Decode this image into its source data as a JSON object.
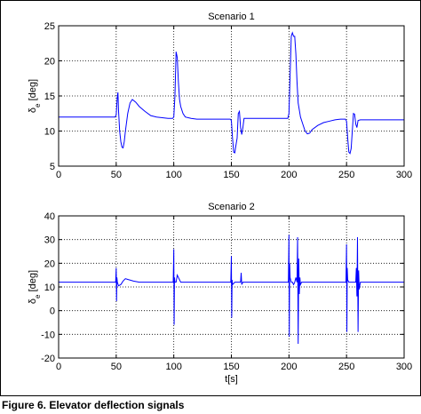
{
  "caption": "Figure 6. Elevator deflection signals",
  "colors": {
    "line": "#0000ff",
    "axis": "#000000",
    "grid": "#000000"
  },
  "chart_data": [
    {
      "type": "line",
      "title": "Scenario 1",
      "xlabel": "",
      "ylabel": "δe [deg]",
      "ylabel_main": "δ",
      "ylabel_sub": "e",
      "ylabel_unit": "[deg]",
      "xlim": [
        0,
        300
      ],
      "ylim": [
        5,
        25
      ],
      "xticks": [
        0,
        50,
        100,
        150,
        200,
        250,
        300
      ],
      "yticks": [
        5,
        10,
        15,
        20,
        25
      ],
      "grid": true,
      "series": [
        {
          "x": [
            0,
            49,
            50,
            51,
            51.5,
            52,
            53,
            54,
            55,
            56,
            57,
            58,
            60,
            62,
            64,
            67,
            70,
            75,
            80,
            85,
            90,
            95,
            99,
            100,
            101,
            102,
            103,
            104,
            105,
            106,
            108,
            110,
            115,
            120,
            125,
            130,
            135,
            140,
            145,
            149,
            150,
            151,
            152,
            153,
            153.5,
            155,
            156,
            157,
            158,
            159,
            160,
            161,
            165,
            170,
            180,
            190,
            199,
            200,
            201,
            202,
            203,
            204,
            205,
            206,
            207,
            208,
            210,
            212,
            214,
            216,
            218,
            220,
            225,
            230,
            235,
            240,
            245,
            249,
            250,
            251,
            252,
            253,
            254,
            255,
            256,
            257,
            258,
            259,
            260,
            262,
            265,
            270,
            280,
            290,
            300
          ],
          "y": [
            12,
            12,
            12.3,
            15,
            15.5,
            13,
            10,
            8.5,
            7.7,
            7.6,
            8.5,
            10,
            12.5,
            14,
            14.5,
            14.1,
            13.5,
            12.8,
            12.2,
            12,
            11.9,
            11.8,
            11.8,
            12,
            15,
            21.3,
            20.5,
            17,
            14.5,
            13.5,
            12.5,
            12,
            11.8,
            11.7,
            11.7,
            11.7,
            11.7,
            11.7,
            11.7,
            11.7,
            11.5,
            9,
            7,
            6.9,
            7.5,
            9,
            12.5,
            12.8,
            10.5,
            9.5,
            10.5,
            11.8,
            11.8,
            11.8,
            11.8,
            11.8,
            11.8,
            12.5,
            18,
            23.5,
            24,
            23.5,
            23.5,
            21,
            17,
            14,
            12,
            11,
            10,
            9.6,
            9.7,
            10.2,
            10.8,
            11.2,
            11.4,
            11.6,
            11.7,
            11.7,
            11.4,
            9,
            7,
            6.8,
            7.5,
            10,
            12.5,
            12.4,
            11,
            10.5,
            11.5,
            11.6,
            11.6,
            11.6,
            11.6,
            11.6,
            11.6
          ]
        }
      ]
    },
    {
      "type": "line",
      "title": "Scenario 2",
      "xlabel": "t[s]",
      "ylabel": "δe [deg]",
      "ylabel_main": "δ",
      "ylabel_sub": "e",
      "ylabel_unit": "[deg]",
      "xlim": [
        0,
        300
      ],
      "ylim": [
        -20,
        40
      ],
      "xticks": [
        0,
        50,
        100,
        150,
        200,
        250,
        300
      ],
      "yticks": [
        -20,
        -10,
        0,
        10,
        20,
        30,
        40
      ],
      "grid": true,
      "series": [
        {
          "x": [
            0,
            49.5,
            50,
            50.3,
            50.6,
            51,
            52,
            54,
            56,
            58,
            60,
            65,
            70,
            80,
            90,
            99.5,
            100,
            100.3,
            100.6,
            101,
            102,
            103,
            104,
            105,
            106,
            107,
            110,
            120,
            130,
            140,
            149.5,
            150,
            150.3,
            150.6,
            151,
            152,
            153,
            155,
            157,
            158,
            158.5,
            159,
            160,
            170,
            180,
            190,
            199.5,
            200,
            200.3,
            200.6,
            201,
            202,
            203,
            204,
            205,
            206,
            207,
            207.5,
            208,
            208.5,
            209,
            209.5,
            210,
            211,
            212,
            213,
            215,
            220,
            230,
            240,
            249.5,
            250,
            250.3,
            250.6,
            251,
            252,
            253,
            255,
            257,
            258,
            258.5,
            259,
            259.5,
            260,
            260.5,
            261,
            262,
            270,
            280,
            290,
            300
          ],
          "y": [
            12,
            12,
            18,
            4,
            14,
            12,
            10.5,
            11,
            12.5,
            13.5,
            13.2,
            12.5,
            12,
            12,
            12,
            12,
            26,
            -6,
            14,
            12,
            12,
            15,
            14,
            13,
            12,
            12,
            12,
            12,
            12,
            12,
            12,
            23,
            -3,
            13,
            11,
            11.5,
            12,
            12,
            12,
            12,
            16,
            11,
            12,
            12,
            12,
            12,
            12,
            32,
            -11,
            20,
            14,
            12,
            12,
            11,
            12,
            14,
            12,
            31,
            -14,
            22,
            7,
            14,
            11,
            12,
            12,
            12,
            12,
            12,
            12,
            12,
            12,
            28,
            -9,
            18,
            13,
            12,
            12,
            12,
            12,
            12,
            18,
            6,
            31,
            -9,
            17,
            9,
            12,
            12,
            12,
            12,
            12
          ]
        }
      ]
    }
  ]
}
